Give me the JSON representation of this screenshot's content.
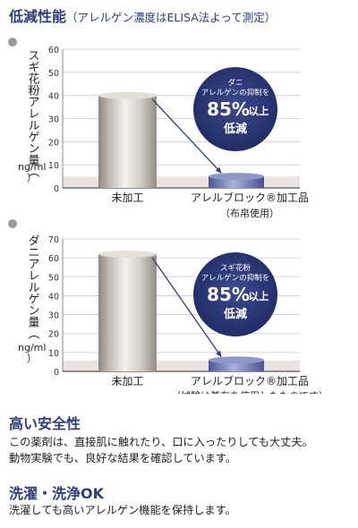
{
  "header": {
    "title": "低減性能",
    "subtitle": "（アレルゲン濃度はELISA法よって測定）"
  },
  "chart_data": [
    {
      "type": "bar",
      "ylabel": "スギ花粉アレルゲン量（",
      "unit": "ng/ml",
      "unit_close": "）",
      "ylim": [
        0,
        60
      ],
      "yticks": [
        "0",
        "10",
        "20",
        "30",
        "40",
        "50",
        "60"
      ],
      "categories": [
        "未加工",
        "アレルブロック®加工品"
      ],
      "category_sublabels": [
        "",
        "（布帛使用）"
      ],
      "values": [
        40,
        5
      ],
      "badge": {
        "line1": "ダニ",
        "line2": "アレルゲンの抑制を",
        "percent": "85%",
        "suffix": "以上",
        "line3": "低減"
      }
    },
    {
      "type": "bar",
      "ylabel": "ダニアレルゲン量（",
      "unit": "ng/ml",
      "unit_close": "）",
      "ylim": [
        0,
        70
      ],
      "yticks": [
        "0",
        "10",
        "20",
        "30",
        "40",
        "50",
        "60",
        "70"
      ],
      "categories": [
        "未加工",
        "アレルブロック®加工品"
      ],
      "category_sublabels": [
        "",
        "（試験は基布を使用したものです）"
      ],
      "values": [
        62,
        6
      ],
      "badge": {
        "line1": "スギ花粉",
        "line2": "アレルゲンの抑制を",
        "percent": "85%",
        "suffix": "以上",
        "line3": "低減"
      }
    }
  ],
  "sections": [
    {
      "title": "高い安全性",
      "lines": [
        "この薬剤は、直接肌に触れたり、口に入ったりしても大丈夫。",
        "動物実験でも、良好な結果を確認しています。"
      ]
    },
    {
      "title": "洗濯・洗浄OK",
      "lines": [
        "洗濯しても高いアレルゲン機能を保持します。"
      ]
    }
  ]
}
